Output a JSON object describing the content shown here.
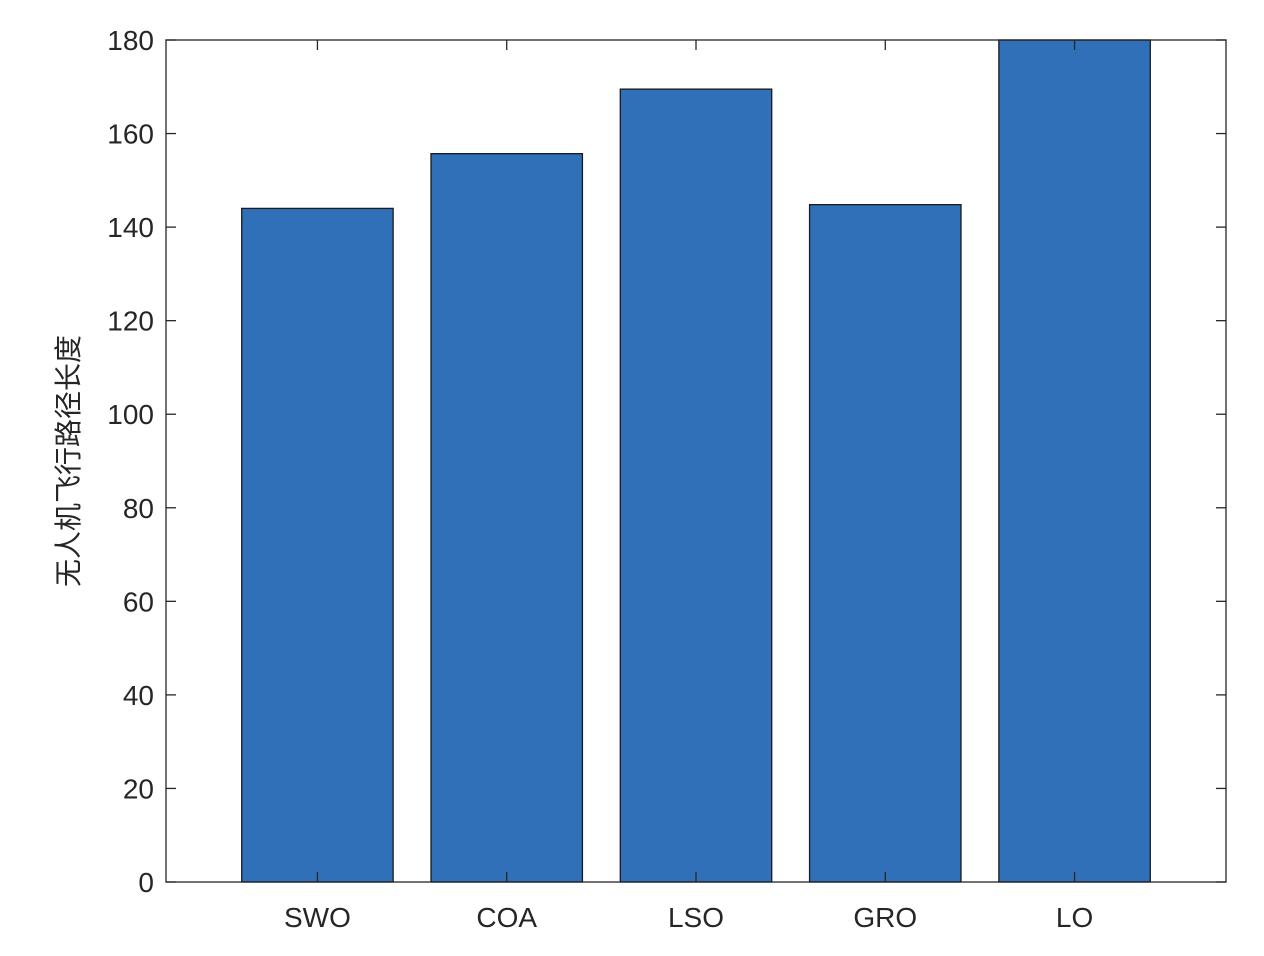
{
  "chart_data": {
    "type": "bar",
    "categories": [
      "SWO",
      "COA",
      "LSO",
      "GRO",
      "LO"
    ],
    "values": [
      144,
      155.7,
      169.5,
      144.8,
      180
    ],
    "title": "",
    "xlabel": "",
    "ylabel": "无人机飞行路径长度",
    "ylim": [
      0,
      180
    ],
    "yticks": [
      0,
      20,
      40,
      60,
      80,
      100,
      120,
      140,
      160,
      180
    ],
    "grid": false,
    "bar_color": "#3070b8",
    "bar_edge_color": "#1a1a1a",
    "axis_color": "#262626"
  }
}
